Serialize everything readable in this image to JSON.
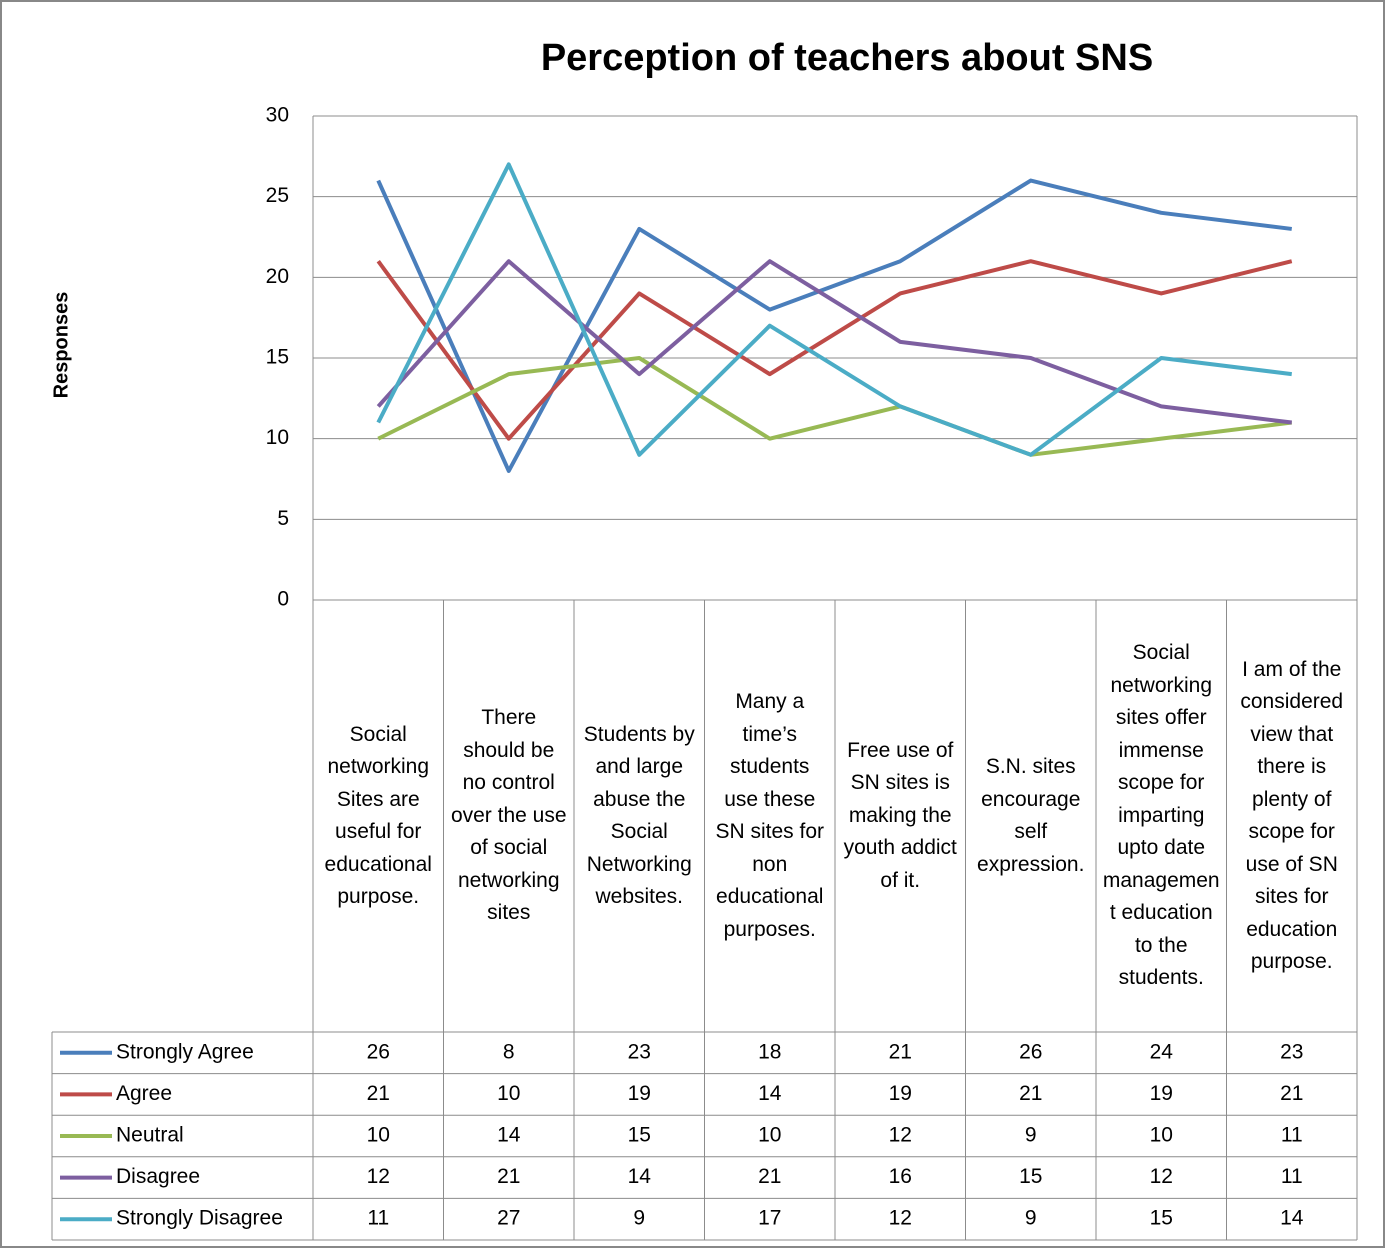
{
  "chart_data": {
    "type": "line",
    "title": "Perception of teachers about SNS",
    "y_label": "Responses",
    "categories": [
      "Social networking Sites are useful for educational purpose.",
      "There should be no control over the use of social networking sites",
      "Students by and large abuse the Social Networking websites.",
      "Many a time’s students use these SN sites for non educational purposes.",
      "Free use of SN sites is making the youth addict of it.",
      "S.N. sites encourage self expression.",
      "Social networking sites offer immense scope for imparting upto date management education to the students.",
      "I am of the considered view that there is plenty of scope for use of SN sites for education purpose."
    ],
    "series": [
      {
        "name": "Strongly Agree",
        "color": "#4a7ebb",
        "values": [
          26,
          8,
          23,
          18,
          21,
          26,
          24,
          23
        ]
      },
      {
        "name": "Agree",
        "color": "#be4b48",
        "values": [
          21,
          10,
          19,
          14,
          19,
          21,
          19,
          21
        ]
      },
      {
        "name": "Neutral",
        "color": "#98b954",
        "values": [
          10,
          14,
          15,
          10,
          12,
          9,
          10,
          11
        ]
      },
      {
        "name": "Disagree",
        "color": "#7d5fa0",
        "values": [
          12,
          21,
          14,
          21,
          16,
          15,
          12,
          11
        ]
      },
      {
        "name": "Strongly Disagree",
        "color": "#4bacc6",
        "values": [
          11,
          27,
          9,
          17,
          12,
          9,
          15,
          14
        ]
      }
    ],
    "ylim": [
      0,
      30
    ],
    "yticks": [
      0,
      5,
      10,
      15,
      20,
      25,
      30
    ],
    "grid": true,
    "data_table": true
  }
}
